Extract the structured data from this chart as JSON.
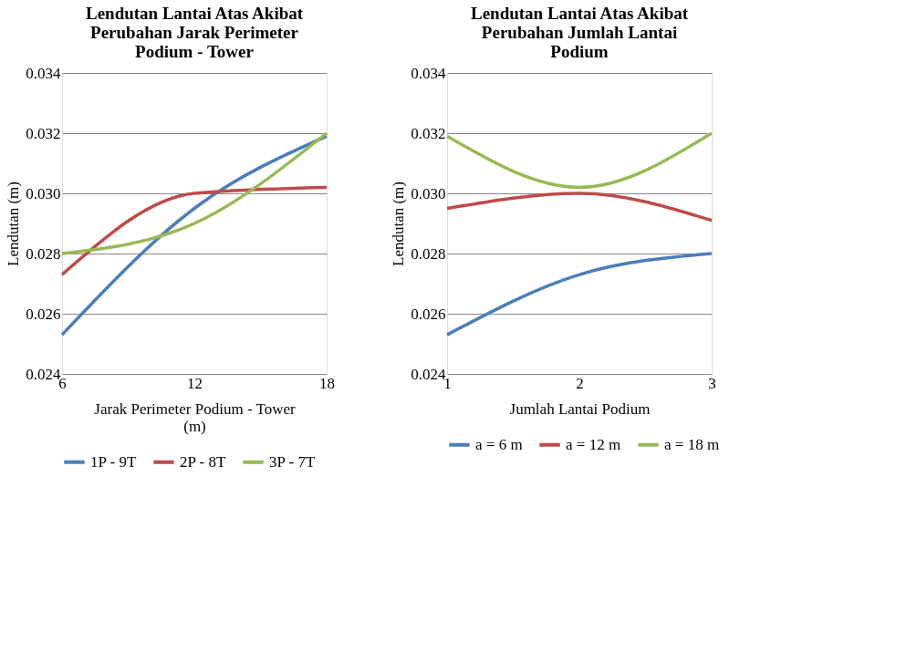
{
  "chart_data": [
    {
      "type": "line",
      "title": "Lendutan Lantai Atas Akibat Perubahan Jarak Perimeter Podium - Tower",
      "xlabel": "Jarak Perimeter Podium - Tower (m)",
      "ylabel": "Lendutan (m)",
      "x": [
        6,
        12,
        18
      ],
      "xlim": [
        6,
        18
      ],
      "xticks": [
        6,
        12,
        18
      ],
      "ylim": [
        0.024,
        0.034
      ],
      "yticks": [
        {
          "value": 0.024,
          "label": "0.024"
        },
        {
          "value": 0.026,
          "label": "0.026"
        },
        {
          "value": 0.028,
          "label": "0.028"
        },
        {
          "value": 0.03,
          "label": "0.030"
        },
        {
          "value": 0.032,
          "label": "0.032"
        },
        {
          "value": 0.034,
          "label": "0.034"
        }
      ],
      "grid": "y",
      "legend": "bottom",
      "marker": "none",
      "line_style": "solid",
      "series": [
        {
          "name": "1P - 9T",
          "color": "#4a7ebb",
          "values": [
            0.0253,
            0.0295,
            0.0319
          ]
        },
        {
          "name": "2P - 8T",
          "color": "#be4b48",
          "values": [
            0.0273,
            0.03,
            0.0302
          ]
        },
        {
          "name": "3P - 7T",
          "color": "#98b954",
          "values": [
            0.028,
            0.029,
            0.032
          ]
        }
      ]
    },
    {
      "type": "line",
      "title": "Lendutan Lantai Atas Akibat Perubahan Jumlah Lantai Podium",
      "xlabel": "Jumlah Lantai Podium",
      "ylabel": "Lendutan (m)",
      "x": [
        1,
        2,
        3
      ],
      "xlim": [
        1,
        3
      ],
      "xticks": [
        1,
        2,
        3
      ],
      "ylim": [
        0.024,
        0.034
      ],
      "yticks": [
        {
          "value": 0.024,
          "label": "0.024"
        },
        {
          "value": 0.026,
          "label": "0.026"
        },
        {
          "value": 0.028,
          "label": "0.028"
        },
        {
          "value": 0.03,
          "label": "0.030"
        },
        {
          "value": 0.032,
          "label": "0.032"
        },
        {
          "value": 0.034,
          "label": "0.034"
        }
      ],
      "grid": "y",
      "legend": "bottom",
      "marker": "none",
      "line_style": "solid",
      "series": [
        {
          "name": "a = 6 m",
          "color": "#4a7ebb",
          "values": [
            0.0253,
            0.0273,
            0.028
          ]
        },
        {
          "name": "a = 12 m",
          "color": "#be4b48",
          "values": [
            0.0295,
            0.03,
            0.0291
          ]
        },
        {
          "name": "a = 18 m",
          "color": "#98b954",
          "values": [
            0.0319,
            0.0302,
            0.032
          ]
        }
      ]
    }
  ]
}
